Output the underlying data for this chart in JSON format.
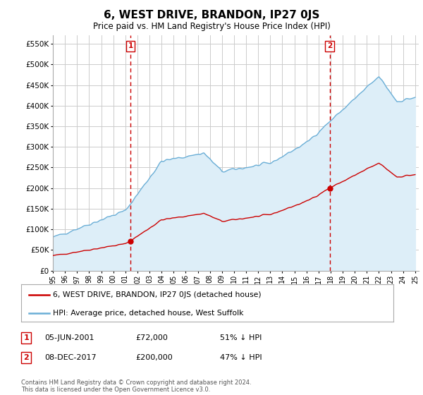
{
  "title": "6, WEST DRIVE, BRANDON, IP27 0JS",
  "subtitle": "Price paid vs. HM Land Registry's House Price Index (HPI)",
  "title_fontsize": 11,
  "subtitle_fontsize": 8.5,
  "background_color": "#ffffff",
  "plot_bg_color": "#ffffff",
  "grid_color": "#cccccc",
  "hpi_color": "#6aaed6",
  "hpi_fill_color": "#ddeef8",
  "price_color": "#cc0000",
  "sale1_date": "05-JUN-2001",
  "sale1_price": "£72,000",
  "sale1_hpi": "51% ↓ HPI",
  "sale2_date": "08-DEC-2017",
  "sale2_price": "£200,000",
  "sale2_hpi": "47% ↓ HPI",
  "legend_label1": "6, WEST DRIVE, BRANDON, IP27 0JS (detached house)",
  "legend_label2": "HPI: Average price, detached house, West Suffolk",
  "footer": "Contains HM Land Registry data © Crown copyright and database right 2024.\nThis data is licensed under the Open Government Licence v3.0.",
  "ylabel_ticks": [
    0,
    50000,
    100000,
    150000,
    200000,
    250000,
    300000,
    350000,
    400000,
    450000,
    500000,
    550000
  ],
  "xlim_start": 1995.0,
  "xlim_end": 2025.3,
  "ylim_min": 0,
  "ylim_max": 570000,
  "sale1_year": 2001.42,
  "sale1_price_val": 72000,
  "sale2_year": 2017.92,
  "sale2_price_val": 200000
}
